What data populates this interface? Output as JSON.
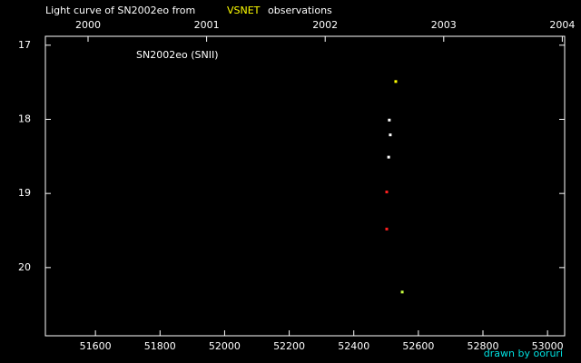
{
  "chart_data": {
    "type": "scatter",
    "title": "Light curve of SN2002eo from",
    "title_highlight": "VSNET",
    "title_end": "observations",
    "annotation": "SN2002eo (SNII)",
    "credit": "drawn by ooruri",
    "x": [
      52530,
      52510,
      52513,
      52508,
      52502,
      52502,
      52550
    ],
    "values": [
      17.49,
      18.01,
      18.21,
      18.51,
      18.98,
      19.48,
      20.33
    ],
    "colors": [
      "#ffff00",
      "#ffffff",
      "#ffffff",
      "#ffffff",
      "#ff2020",
      "#ff2020",
      "#c8ff40"
    ],
    "xlim": [
      51445,
      53053
    ],
    "xticks": [
      51600,
      51800,
      52000,
      52200,
      52400,
      52600,
      52800,
      53000
    ],
    "x2lim": [
      1999.64,
      2004.02
    ],
    "x2ticks": [
      2000,
      2001,
      2002,
      2003,
      2004
    ],
    "ylim": [
      16.88,
      20.92
    ],
    "yticks": [
      17,
      18,
      19,
      20
    ],
    "y_inverted": true
  }
}
